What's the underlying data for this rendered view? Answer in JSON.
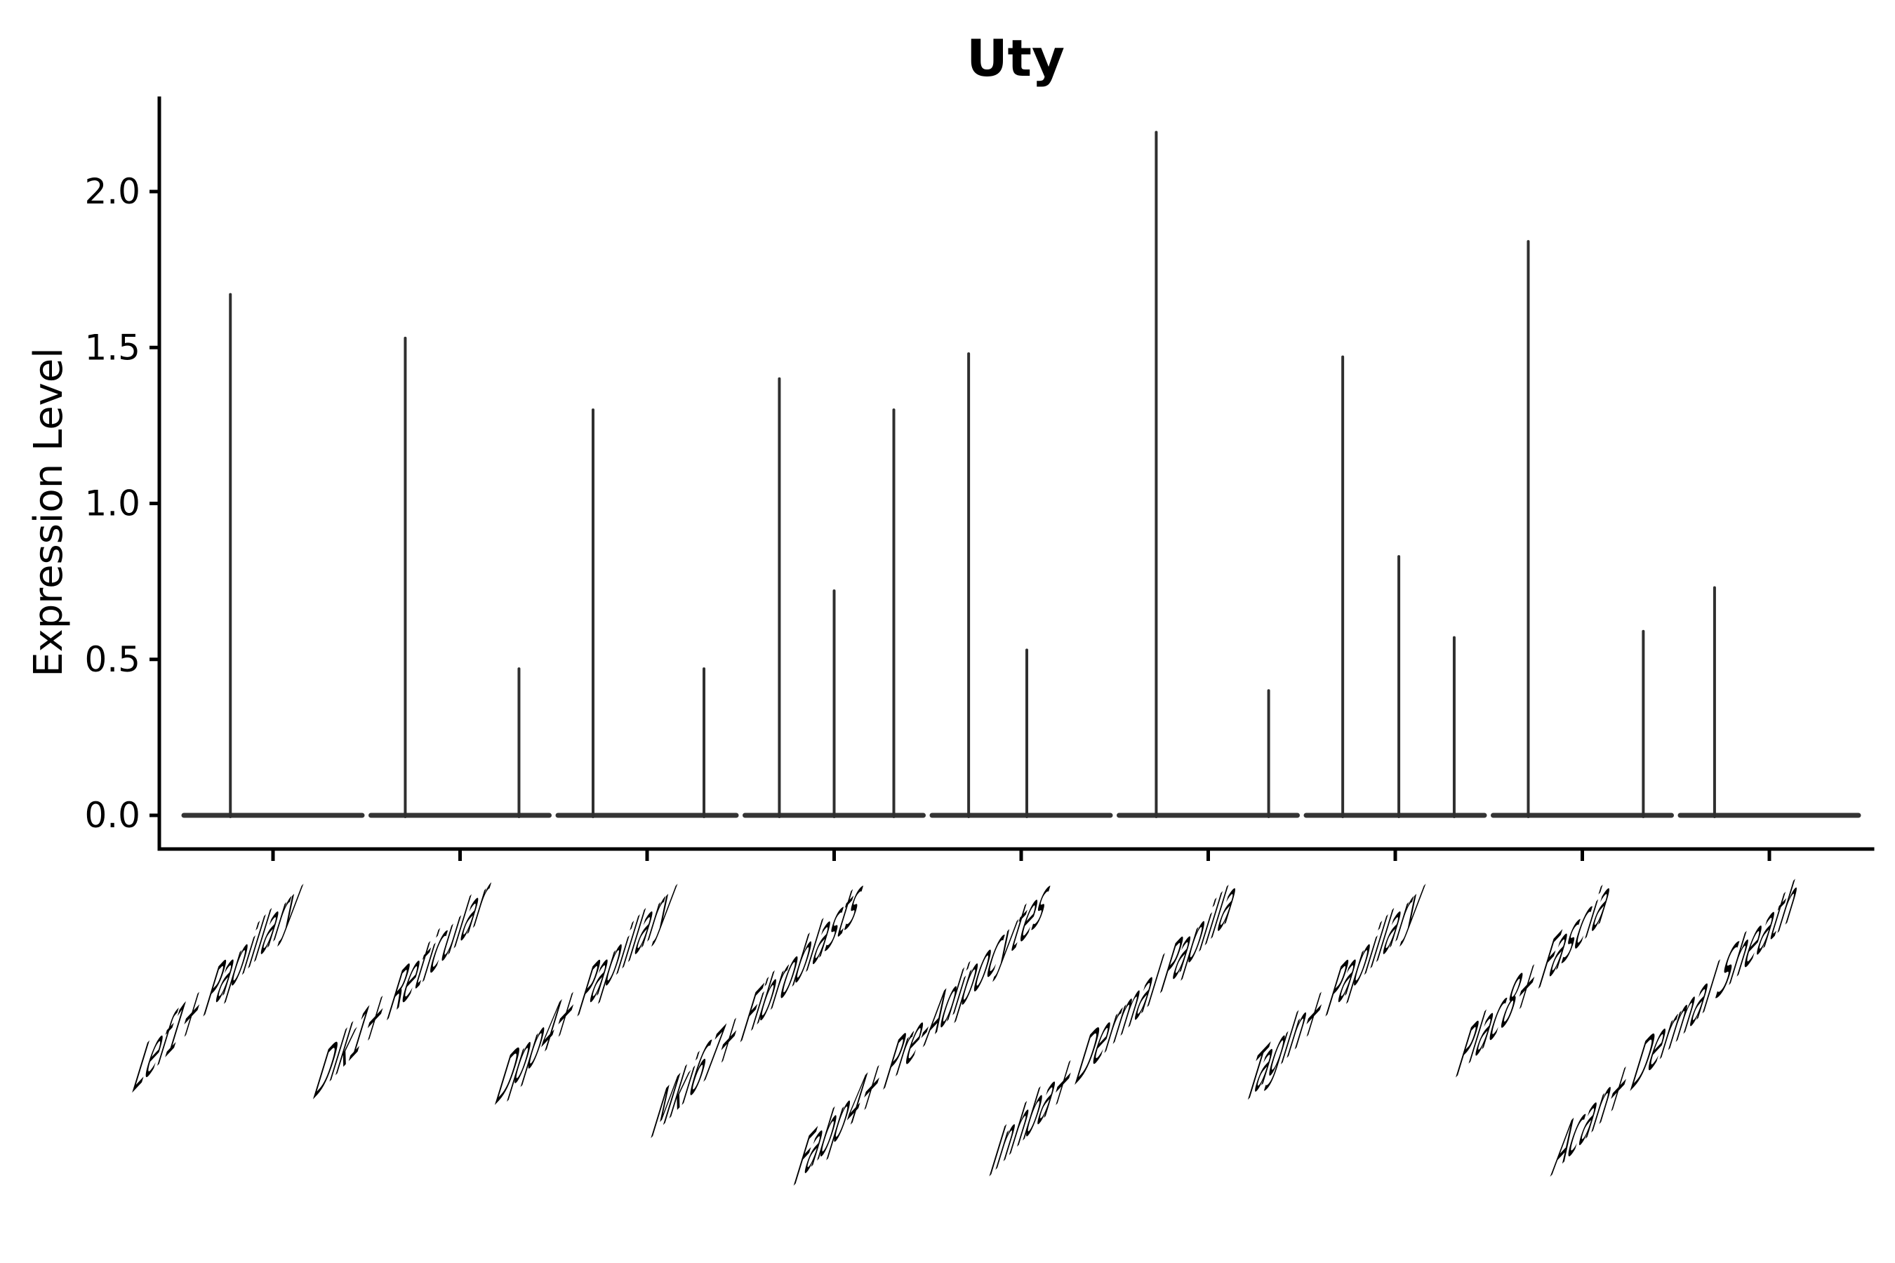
{
  "chart_data": {
    "type": "violin",
    "title": "Uty",
    "ylabel": "Expression Level",
    "xlabel": "",
    "grid": false,
    "legend": null,
    "ylim": [
      -0.11,
      2.3
    ],
    "yticks": [
      0.0,
      0.5,
      1.0,
      1.5,
      2.0
    ],
    "ytick_labels": [
      "0.0",
      "0.5",
      "1.0",
      "1.5",
      "2.0"
    ],
    "categories": [
      "Lef1+ Papillary",
      "Dlk1+ Reticular",
      "Dpp4+ Papillary",
      "Mki67+ Fibroblasts",
      "Fabp4+ Pre-Adipocytes",
      "Inhba+ Dermal Papilla",
      "Tagln+ Papillary",
      "Plac8+ Fascia",
      "Acan+ Dermal Sheath"
    ],
    "violins": [
      {
        "category": "Lef1+ Papillary",
        "baseline_value": 0.0,
        "spikes": [
          {
            "offset": -0.228,
            "max": 1.67
          }
        ]
      },
      {
        "category": "Dlk1+ Reticular",
        "baseline_value": 0.0,
        "spikes": [
          {
            "offset": -0.293,
            "max": 1.53
          },
          {
            "offset": 0.315,
            "max": 0.47
          }
        ]
      },
      {
        "category": "Dpp4+ Papillary",
        "baseline_value": 0.0,
        "spikes": [
          {
            "offset": -0.289,
            "max": 1.3
          },
          {
            "offset": 0.304,
            "max": 0.47
          }
        ]
      },
      {
        "category": "Mki67+ Fibroblasts",
        "baseline_value": 0.0,
        "spikes": [
          {
            "offset": -0.293,
            "max": 1.4
          },
          {
            "offset": 0.0,
            "max": 0.72
          },
          {
            "offset": 0.319,
            "max": 1.3
          }
        ]
      },
      {
        "category": "Fabp4+ Pre-Adipocytes",
        "baseline_value": 0.0,
        "spikes": [
          {
            "offset": -0.281,
            "max": 1.48
          },
          {
            "offset": 0.03,
            "max": 0.53
          }
        ]
      },
      {
        "category": "Inhba+ Dermal Papilla",
        "baseline_value": 0.0,
        "spikes": [
          {
            "offset": -0.278,
            "max": 2.19
          },
          {
            "offset": 0.323,
            "max": 0.4
          }
        ]
      },
      {
        "category": "Tagln+ Papillary",
        "baseline_value": 0.0,
        "spikes": [
          {
            "offset": -0.281,
            "max": 1.47
          },
          {
            "offset": 0.019,
            "max": 0.83
          },
          {
            "offset": 0.315,
            "max": 0.57
          }
        ]
      },
      {
        "category": "Plac8+ Fascia",
        "baseline_value": 0.0,
        "spikes": [
          {
            "offset": -0.289,
            "max": 1.84
          },
          {
            "offset": 0.326,
            "max": 0.59
          }
        ]
      },
      {
        "category": "Acan+ Dermal Sheath",
        "baseline_value": 0.0,
        "spikes": [
          {
            "offset": -0.293,
            "max": 0.73
          }
        ]
      }
    ],
    "colors": {
      "violin_stroke": "#2f2f2f",
      "axis": "#000000",
      "background": "#ffffff"
    }
  }
}
